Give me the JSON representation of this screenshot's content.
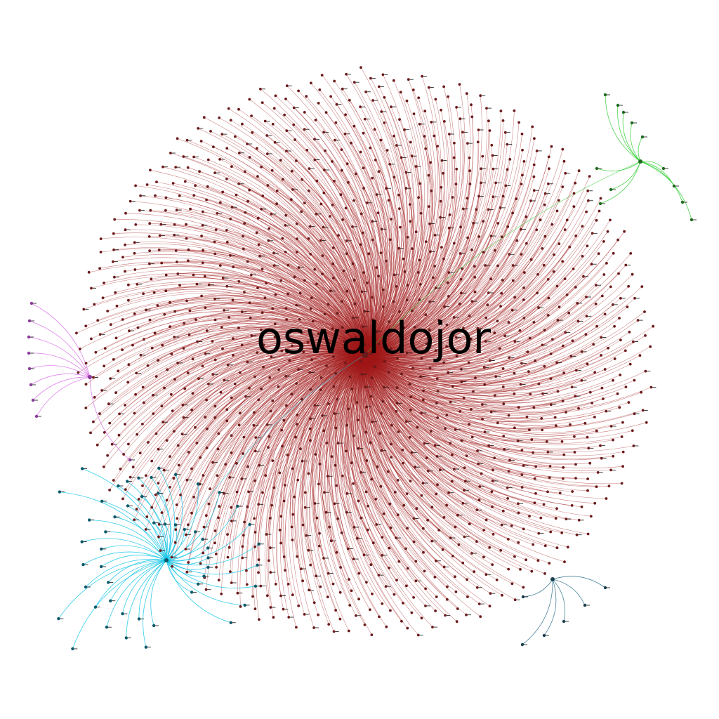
{
  "hub_label": "oswaldojor",
  "clusters": [
    {
      "id": "main",
      "color": "#a01818",
      "node_color": "#6b1a1a",
      "leaf_count": 1500
    },
    {
      "id": "green",
      "color": "#2ecc2e",
      "node_color": "#1e6b1e",
      "leaf_count": 12
    },
    {
      "id": "violet",
      "color": "#d86be8",
      "node_color": "#8a3a9a",
      "leaf_count": 9
    },
    {
      "id": "cyan",
      "color": "#12c4e8",
      "node_color": "#0b5a6a",
      "leaf_count": 70
    },
    {
      "id": "teal",
      "color": "#2a6f88",
      "node_color": "#1a3f4f",
      "leaf_count": 6
    }
  ]
}
